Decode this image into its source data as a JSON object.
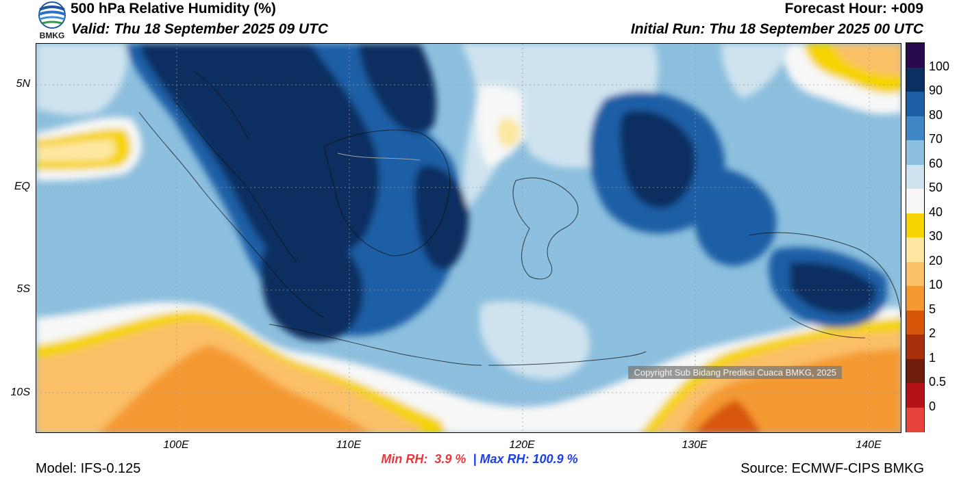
{
  "header": {
    "title": "500 hPa Relative Humidity (%)",
    "valid": "Valid: Thu 18 September 2025 09 UTC",
    "forecast_hour": "Forecast Hour: +009",
    "initial_run": "Initial Run: Thu 18 September 2025 00 UTC",
    "logo_text": "BMKG"
  },
  "map": {
    "lat_ticks": [
      "5N",
      "EQ",
      "5S",
      "10S"
    ],
    "lon_ticks": [
      "100E",
      "110E",
      "120E",
      "130E",
      "140E"
    ],
    "copyright": "Copyright Sub Bidang Prediksi Cuaca BMKG, 2025"
  },
  "colorbar": {
    "labels": [
      "100",
      "90",
      "80",
      "70",
      "60",
      "50",
      "40",
      "30",
      "20",
      "10",
      "5",
      "2",
      "1",
      "0.5",
      "0"
    ],
    "colors": [
      "#2a0a4e",
      "#0b2f61",
      "#1d5fa6",
      "#3f87c4",
      "#8dbfde",
      "#cfe3ef",
      "#f7f7f7",
      "#f5d400",
      "#fde7a0",
      "#fbc068",
      "#f59a31",
      "#d8560a",
      "#a6300b",
      "#6e1d0a",
      "#b51218",
      "#e8423d"
    ]
  },
  "stats": {
    "min_label": "Min RH:",
    "min_value": "3.9 %",
    "separator": "|",
    "max_label": "Max RH:",
    "max_value": "100.9 %"
  },
  "footer": {
    "model": "Model: IFS-0.125",
    "source": "Source: ECMWF-CIPS BMKG"
  }
}
